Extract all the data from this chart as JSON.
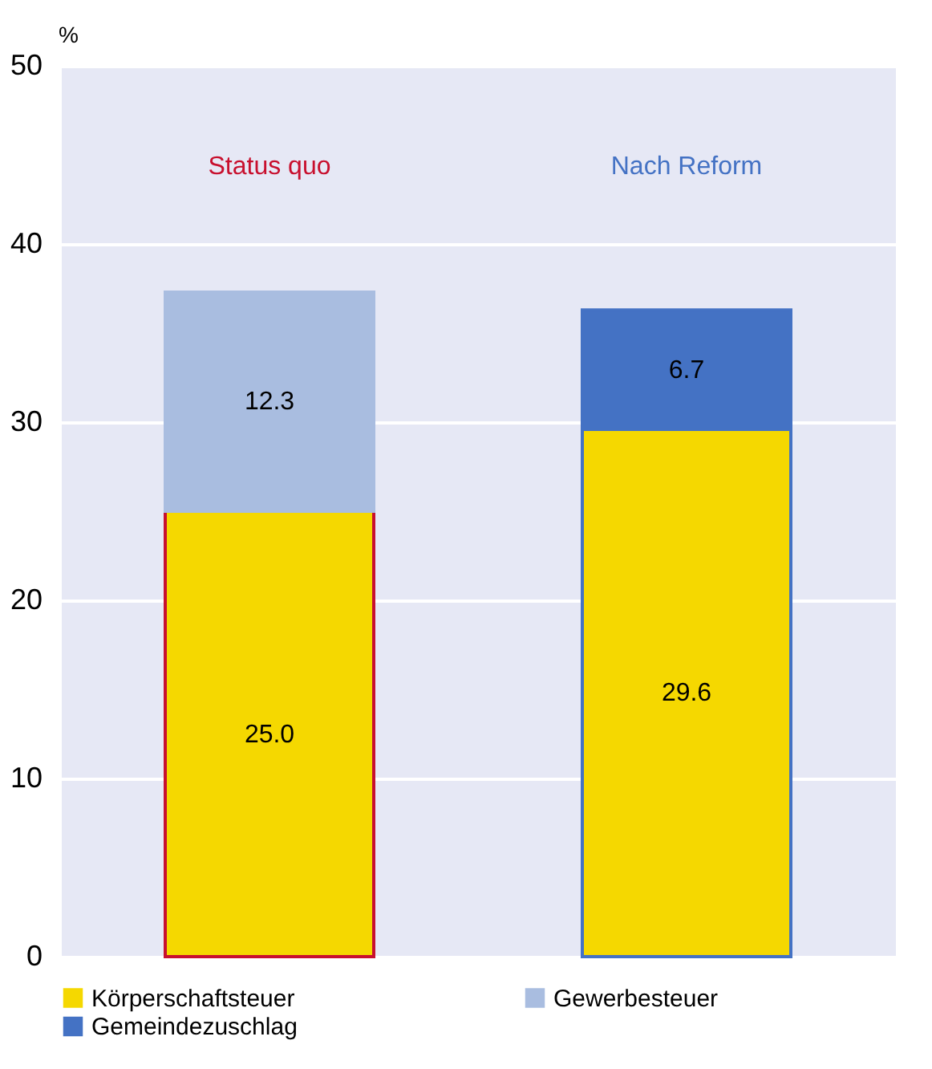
{
  "chart_data": {
    "type": "bar",
    "stacked": true,
    "ylabel": "%",
    "categories": [
      "Status quo",
      "Nach Reform"
    ],
    "series": [
      {
        "name": "Körperschaftsteuer",
        "color": "#f5d800",
        "values": [
          25.0,
          29.6
        ],
        "value_labels": [
          "25.0",
          "29.6"
        ]
      },
      {
        "name": "Gewerbesteuer",
        "color": "#a9bde0",
        "values": [
          12.3,
          null
        ],
        "value_labels": [
          "12.3",
          null
        ]
      },
      {
        "name": "Gemeindezuschlag",
        "color": "#4472c4",
        "values": [
          null,
          6.7
        ],
        "value_labels": [
          null,
          "6.7"
        ]
      }
    ],
    "ylim": [
      0,
      50
    ],
    "yticks": [
      0,
      10,
      20,
      30,
      40,
      50
    ],
    "grid": "y",
    "legend": "bottom"
  }
}
